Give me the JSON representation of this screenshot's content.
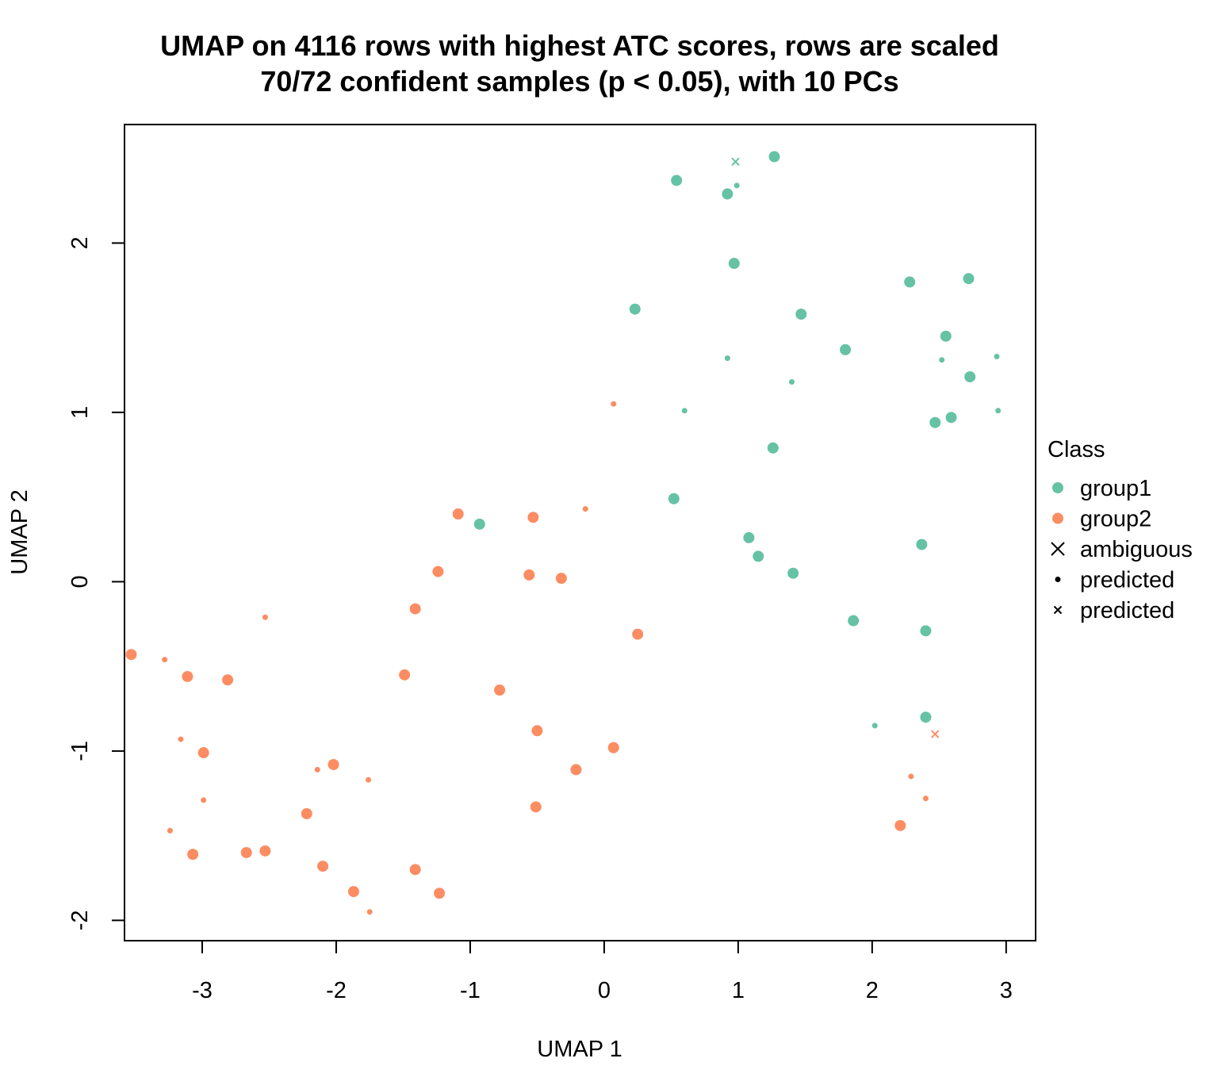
{
  "chart_data": {
    "type": "scatter",
    "title": "UMAP on 4116 rows with highest ATC scores, rows are scaled",
    "subtitle": "70/72 confident samples (p < 0.05), with 10 PCs",
    "xlabel": "UMAP 1",
    "ylabel": "UMAP 2",
    "xlim": [
      -3.58,
      3.22
    ],
    "ylim": [
      -2.12,
      2.7
    ],
    "x_ticks": [
      -3,
      -2,
      -1,
      0,
      1,
      2,
      3
    ],
    "y_ticks": [
      -2,
      -1,
      0,
      1,
      2
    ],
    "x_tick_labels": [
      "-3",
      "-2",
      "-1",
      "0",
      "1",
      "2",
      "3"
    ],
    "y_tick_labels": [
      "-2",
      "-1",
      "0",
      "1",
      "2"
    ],
    "grid": false,
    "legend": {
      "title": "Class",
      "position": "right",
      "entries": [
        {
          "label": "group1",
          "marker": "dot",
          "color": "#66C2A5"
        },
        {
          "label": "group2",
          "marker": "dot",
          "color": "#FC8D62"
        },
        {
          "label": "ambiguous",
          "marker": "cross",
          "color": "#000000"
        },
        {
          "label": "predicted",
          "marker": "small-dot",
          "color": "#000000"
        },
        {
          "label": "predicted",
          "marker": "small-cross",
          "color": "#000000"
        }
      ]
    },
    "colors": {
      "group1": "#66C2A5",
      "group2": "#FC8D62"
    },
    "series": [
      {
        "name": "group1",
        "points": [
          {
            "x": 1.27,
            "y": 2.51,
            "kind": "confident"
          },
          {
            "x": 0.54,
            "y": 2.37,
            "kind": "confident"
          },
          {
            "x": 0.92,
            "y": 2.29,
            "kind": "confident"
          },
          {
            "x": 0.99,
            "y": 2.34,
            "kind": "predicted"
          },
          {
            "x": 0.98,
            "y": 2.48,
            "kind": "predicted-ambiguous"
          },
          {
            "x": 0.97,
            "y": 1.88,
            "kind": "confident"
          },
          {
            "x": 0.23,
            "y": 1.61,
            "kind": "confident"
          },
          {
            "x": 1.47,
            "y": 1.58,
            "kind": "confident"
          },
          {
            "x": 2.28,
            "y": 1.77,
            "kind": "confident"
          },
          {
            "x": 2.72,
            "y": 1.79,
            "kind": "confident"
          },
          {
            "x": 2.55,
            "y": 1.45,
            "kind": "confident"
          },
          {
            "x": 1.8,
            "y": 1.37,
            "kind": "confident"
          },
          {
            "x": 0.92,
            "y": 1.32,
            "kind": "predicted"
          },
          {
            "x": 2.52,
            "y": 1.31,
            "kind": "predicted"
          },
          {
            "x": 2.93,
            "y": 1.33,
            "kind": "predicted"
          },
          {
            "x": 1.4,
            "y": 1.18,
            "kind": "predicted"
          },
          {
            "x": 2.73,
            "y": 1.21,
            "kind": "confident"
          },
          {
            "x": 0.6,
            "y": 1.01,
            "kind": "predicted"
          },
          {
            "x": 2.94,
            "y": 1.01,
            "kind": "predicted"
          },
          {
            "x": 2.47,
            "y": 0.94,
            "kind": "confident"
          },
          {
            "x": 2.59,
            "y": 0.97,
            "kind": "confident"
          },
          {
            "x": 1.26,
            "y": 0.79,
            "kind": "confident"
          },
          {
            "x": 0.52,
            "y": 0.49,
            "kind": "confident"
          },
          {
            "x": -0.93,
            "y": 0.34,
            "kind": "confident"
          },
          {
            "x": 1.08,
            "y": 0.26,
            "kind": "confident"
          },
          {
            "x": 1.15,
            "y": 0.15,
            "kind": "confident"
          },
          {
            "x": 2.37,
            "y": 0.22,
            "kind": "confident"
          },
          {
            "x": 1.41,
            "y": 0.05,
            "kind": "confident"
          },
          {
            "x": 1.86,
            "y": -0.23,
            "kind": "confident"
          },
          {
            "x": 2.4,
            "y": -0.29,
            "kind": "confident"
          },
          {
            "x": 2.4,
            "y": -0.8,
            "kind": "confident"
          },
          {
            "x": 2.02,
            "y": -0.85,
            "kind": "predicted"
          }
        ]
      },
      {
        "name": "group2",
        "points": [
          {
            "x": 0.07,
            "y": 1.05,
            "kind": "predicted"
          },
          {
            "x": -1.09,
            "y": 0.4,
            "kind": "confident"
          },
          {
            "x": -0.53,
            "y": 0.38,
            "kind": "confident"
          },
          {
            "x": -0.14,
            "y": 0.43,
            "kind": "predicted"
          },
          {
            "x": -1.24,
            "y": 0.06,
            "kind": "confident"
          },
          {
            "x": -0.56,
            "y": 0.04,
            "kind": "confident"
          },
          {
            "x": -0.32,
            "y": 0.02,
            "kind": "confident"
          },
          {
            "x": -1.41,
            "y": -0.16,
            "kind": "confident"
          },
          {
            "x": -2.53,
            "y": -0.21,
            "kind": "predicted"
          },
          {
            "x": 0.25,
            "y": -0.31,
            "kind": "confident"
          },
          {
            "x": -3.53,
            "y": -0.43,
            "kind": "confident"
          },
          {
            "x": -3.28,
            "y": -0.46,
            "kind": "predicted"
          },
          {
            "x": -3.11,
            "y": -0.56,
            "kind": "confident"
          },
          {
            "x": -2.81,
            "y": -0.58,
            "kind": "confident"
          },
          {
            "x": -1.49,
            "y": -0.55,
            "kind": "confident"
          },
          {
            "x": -0.78,
            "y": -0.64,
            "kind": "confident"
          },
          {
            "x": -0.5,
            "y": -0.88,
            "kind": "confident"
          },
          {
            "x": -3.16,
            "y": -0.93,
            "kind": "predicted"
          },
          {
            "x": -2.99,
            "y": -1.01,
            "kind": "confident"
          },
          {
            "x": 0.07,
            "y": -0.98,
            "kind": "confident"
          },
          {
            "x": -2.02,
            "y": -1.08,
            "kind": "confident"
          },
          {
            "x": -2.14,
            "y": -1.11,
            "kind": "predicted"
          },
          {
            "x": -0.21,
            "y": -1.11,
            "kind": "confident"
          },
          {
            "x": -1.76,
            "y": -1.17,
            "kind": "predicted"
          },
          {
            "x": 2.29,
            "y": -1.15,
            "kind": "predicted"
          },
          {
            "x": 2.47,
            "y": -0.9,
            "kind": "predicted-ambiguous"
          },
          {
            "x": -2.99,
            "y": -1.29,
            "kind": "predicted"
          },
          {
            "x": 2.4,
            "y": -1.28,
            "kind": "predicted"
          },
          {
            "x": -0.51,
            "y": -1.33,
            "kind": "confident"
          },
          {
            "x": -2.22,
            "y": -1.37,
            "kind": "confident"
          },
          {
            "x": 2.21,
            "y": -1.44,
            "kind": "confident"
          },
          {
            "x": -3.24,
            "y": -1.47,
            "kind": "predicted"
          },
          {
            "x": -3.07,
            "y": -1.61,
            "kind": "confident"
          },
          {
            "x": -2.67,
            "y": -1.6,
            "kind": "confident"
          },
          {
            "x": -2.53,
            "y": -1.59,
            "kind": "confident"
          },
          {
            "x": -2.1,
            "y": -1.68,
            "kind": "confident"
          },
          {
            "x": -1.41,
            "y": -1.7,
            "kind": "confident"
          },
          {
            "x": -1.87,
            "y": -1.83,
            "kind": "confident"
          },
          {
            "x": -1.23,
            "y": -1.84,
            "kind": "confident"
          },
          {
            "x": -1.75,
            "y": -1.95,
            "kind": "predicted"
          }
        ]
      }
    ]
  }
}
